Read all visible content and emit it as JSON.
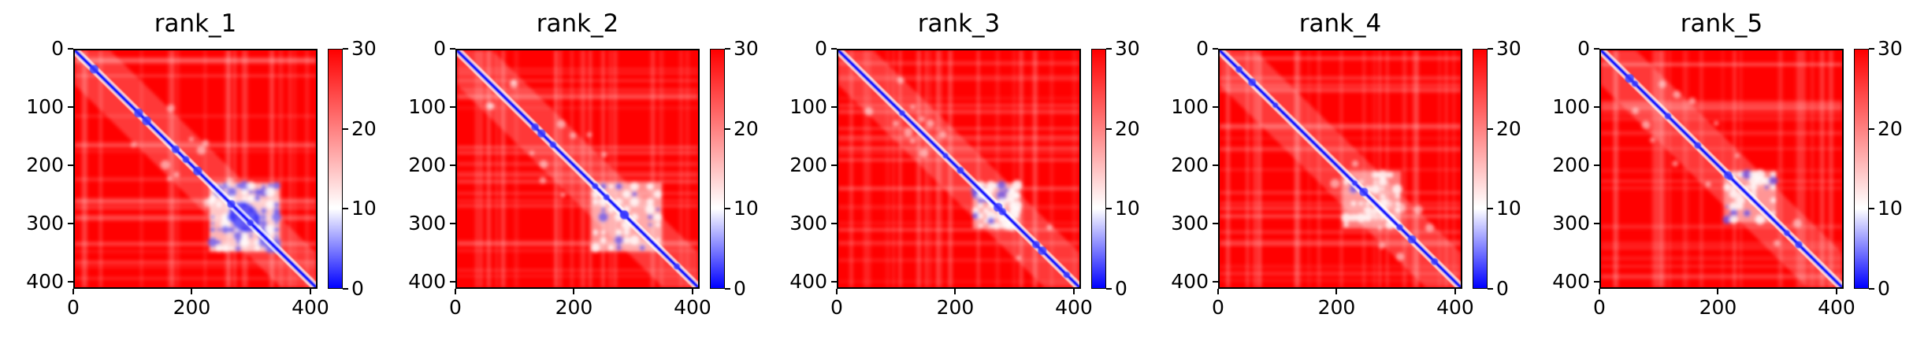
{
  "chart_data": [
    {
      "type": "heatmap",
      "title": "rank_1",
      "xlim": [
        0,
        412
      ],
      "ylim": [
        412,
        0
      ],
      "x_ticks": [
        "0",
        "200",
        "400"
      ],
      "y_ticks": [
        "0",
        "100",
        "200",
        "300",
        "400"
      ],
      "colorbar": {
        "range": [
          0,
          30
        ],
        "ticks": [
          "0",
          "10",
          "20",
          "30"
        ],
        "colors": [
          "#0000ff",
          "#ffffff",
          "#ff0000"
        ]
      },
      "diagonal": "low distance (blue)",
      "low_block": {
        "from": 230,
        "to": 350,
        "strength": 0.9
      }
    },
    {
      "type": "heatmap",
      "title": "rank_2",
      "xlim": [
        0,
        412
      ],
      "ylim": [
        412,
        0
      ],
      "x_ticks": [
        "0",
        "200",
        "400"
      ],
      "y_ticks": [
        "0",
        "100",
        "200",
        "300",
        "400"
      ],
      "colorbar": {
        "range": [
          0,
          30
        ],
        "ticks": [
          "0",
          "10",
          "20",
          "30"
        ],
        "colors": [
          "#0000ff",
          "#ffffff",
          "#ff0000"
        ]
      },
      "diagonal": "low distance (blue)",
      "low_block": {
        "from": 230,
        "to": 350,
        "strength": 0.55
      }
    },
    {
      "type": "heatmap",
      "title": "rank_3",
      "xlim": [
        0,
        412
      ],
      "ylim": [
        412,
        0
      ],
      "x_ticks": [
        "0",
        "200",
        "400"
      ],
      "y_ticks": [
        "0",
        "100",
        "200",
        "300",
        "400"
      ],
      "colorbar": {
        "range": [
          0,
          30
        ],
        "ticks": [
          "0",
          "10",
          "20",
          "30"
        ],
        "colors": [
          "#0000ff",
          "#ffffff",
          "#ff0000"
        ]
      },
      "diagonal": "low distance (blue)",
      "low_block": {
        "from": 230,
        "to": 310,
        "strength": 0.45
      }
    },
    {
      "type": "heatmap",
      "title": "rank_4",
      "xlim": [
        0,
        412
      ],
      "ylim": [
        412,
        0
      ],
      "x_ticks": [
        "0",
        "200",
        "400"
      ],
      "y_ticks": [
        "0",
        "100",
        "200",
        "300",
        "400"
      ],
      "colorbar": {
        "range": [
          0,
          30
        ],
        "ticks": [
          "0",
          "10",
          "20",
          "30"
        ],
        "colors": [
          "#0000ff",
          "#ffffff",
          "#ff0000"
        ]
      },
      "diagonal": "low distance (blue)",
      "low_block": {
        "from": 210,
        "to": 310,
        "strength": 0.35
      }
    },
    {
      "type": "heatmap",
      "title": "rank_5",
      "xlim": [
        0,
        412
      ],
      "ylim": [
        412,
        0
      ],
      "x_ticks": [
        "0",
        "200",
        "400"
      ],
      "y_ticks": [
        "0",
        "100",
        "200",
        "300",
        "400"
      ],
      "colorbar": {
        "range": [
          0,
          30
        ],
        "ticks": [
          "0",
          "10",
          "20",
          "30"
        ],
        "colors": [
          "#0000ff",
          "#ffffff",
          "#ff0000"
        ]
      },
      "diagonal": "low distance (blue)",
      "low_block": {
        "from": 210,
        "to": 300,
        "strength": 0.3
      }
    }
  ]
}
